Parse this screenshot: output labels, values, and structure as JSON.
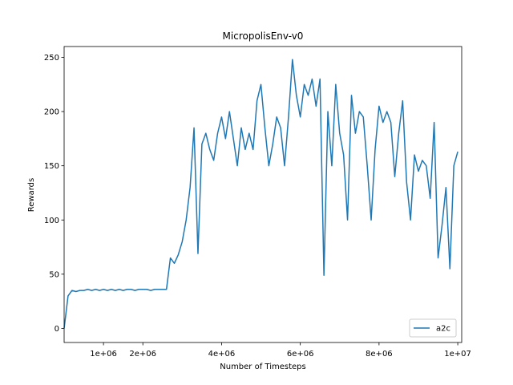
{
  "chart_data": {
    "type": "line",
    "title": "MicropolisEnv-v0",
    "x_label": "Number of Timesteps",
    "y_label": "Rewards",
    "x": [
      0,
      100000,
      200000,
      300000,
      400000,
      500000,
      600000,
      700000,
      800000,
      900000,
      1000000,
      1100000,
      1200000,
      1300000,
      1400000,
      1500000,
      1600000,
      1700000,
      1800000,
      1900000,
      2000000,
      2100000,
      2200000,
      2300000,
      2400000,
      2500000,
      2600000,
      2700000,
      2800000,
      2900000,
      3000000,
      3100000,
      3200000,
      3300000,
      3400000,
      3500000,
      3600000,
      3700000,
      3800000,
      3900000,
      4000000,
      4100000,
      4200000,
      4300000,
      4400000,
      4500000,
      4600000,
      4700000,
      4800000,
      4900000,
      5000000,
      5100000,
      5200000,
      5300000,
      5400000,
      5500000,
      5600000,
      5700000,
      5800000,
      5900000,
      6000000,
      6100000,
      6200000,
      6300000,
      6400000,
      6500000,
      6600000,
      6700000,
      6800000,
      6900000,
      7000000,
      7100000,
      7200000,
      7300000,
      7400000,
      7500000,
      7600000,
      7700000,
      7800000,
      7900000,
      8000000,
      8100000,
      8200000,
      8300000,
      8400000,
      8500000,
      8600000,
      8700000,
      8800000,
      8900000,
      9000000,
      9100000,
      9200000,
      9300000,
      9400000,
      9500000,
      9600000,
      9700000,
      9800000,
      9900000,
      10000000
    ],
    "series": [
      {
        "name": "a2c",
        "color": "#1f77b4",
        "values": [
          0,
          30,
          35,
          34,
          35,
          35,
          36,
          35,
          36,
          35,
          36,
          35,
          36,
          35,
          36,
          35,
          36,
          36,
          35,
          36,
          36,
          36,
          35,
          36,
          36,
          36,
          36,
          65,
          60,
          68,
          80,
          100,
          130,
          185,
          69,
          170,
          180,
          165,
          155,
          180,
          195,
          175,
          200,
          175,
          150,
          185,
          165,
          180,
          165,
          210,
          225,
          185,
          150,
          170,
          195,
          185,
          150,
          195,
          248,
          215,
          195,
          225,
          215,
          230,
          205,
          230,
          49,
          200,
          150,
          225,
          180,
          160,
          100,
          215,
          180,
          200,
          195,
          150,
          100,
          165,
          205,
          190,
          200,
          190,
          140,
          180,
          210,
          135,
          100,
          160,
          145,
          155,
          150,
          120,
          190,
          65,
          95,
          130,
          55,
          150,
          163
        ]
      }
    ],
    "xlim": [
      0,
      10100000
    ],
    "ylim": [
      -13,
      260
    ],
    "xticks": [
      {
        "value": 1000000,
        "label": "1e+06"
      },
      {
        "value": 2000000,
        "label": "2e+06"
      },
      {
        "value": 4000000,
        "label": "4e+06"
      },
      {
        "value": 6000000,
        "label": "6e+06"
      },
      {
        "value": 8000000,
        "label": "8e+06"
      },
      {
        "value": 10000000,
        "label": "1e+07"
      }
    ],
    "yticks": [
      0,
      50,
      100,
      150,
      200,
      250
    ],
    "legend": "lower right"
  }
}
